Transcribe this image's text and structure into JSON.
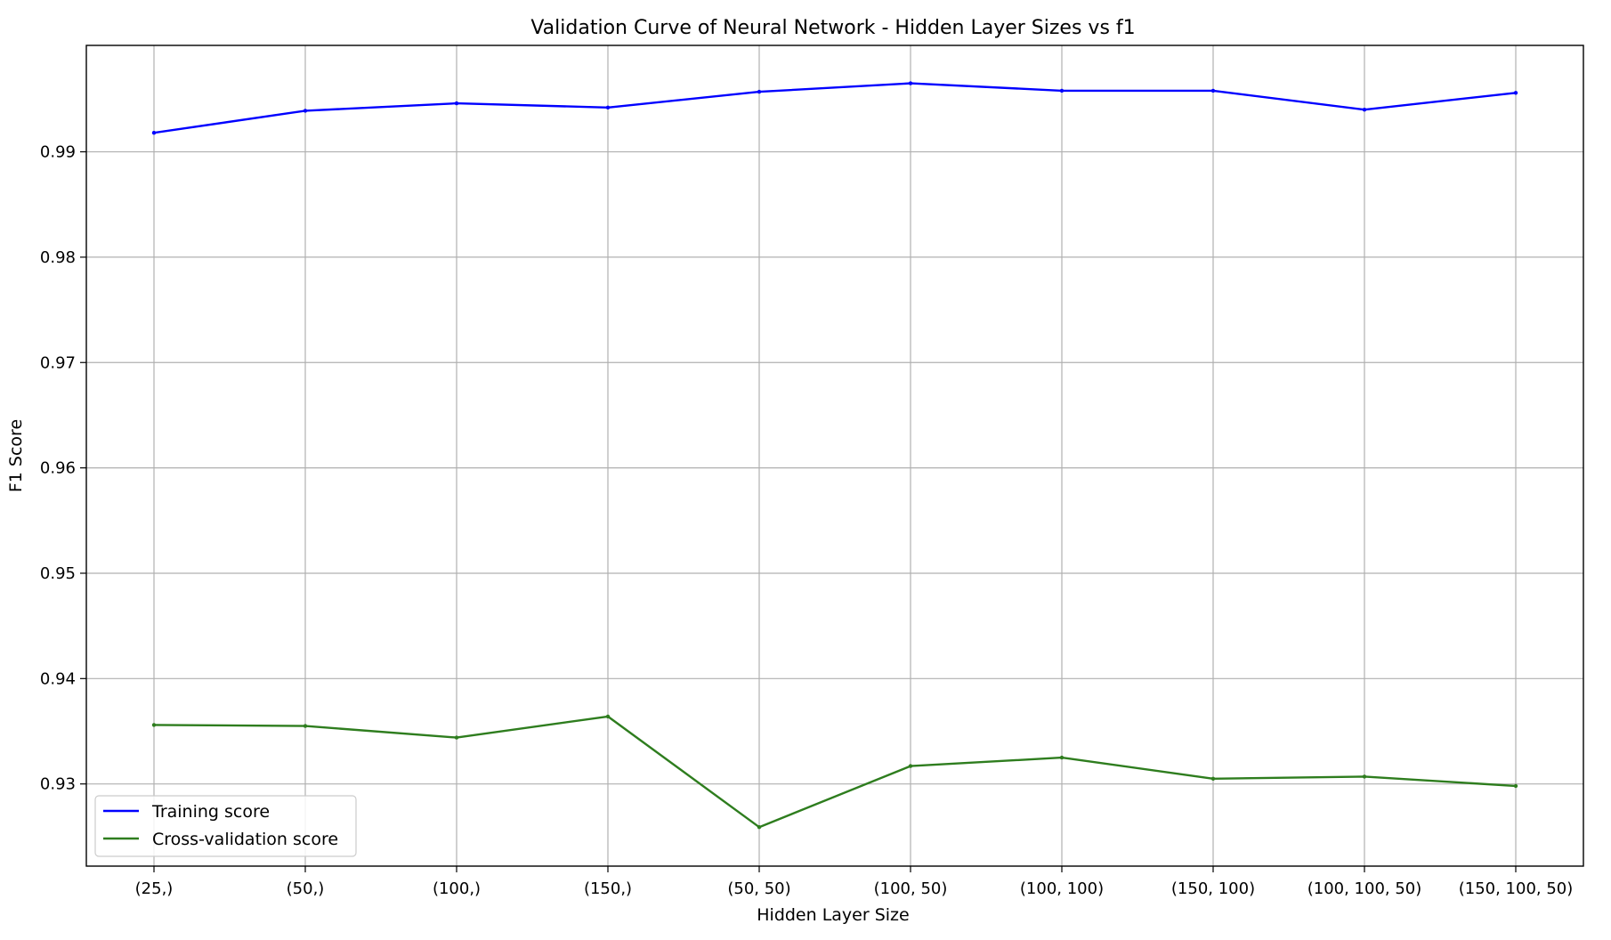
{
  "chart_data": {
    "type": "line",
    "title": "Validation Curve of Neural Network - Hidden Layer Sizes vs f1",
    "xlabel": "Hidden Layer Size",
    "ylabel": "F1 Score",
    "categories": [
      "(25,)",
      "(50,)",
      "(100,)",
      "(150,)",
      "(50, 50)",
      "(100, 50)",
      "(100, 100)",
      "(150, 100)",
      "(100, 100, 50)",
      "(150, 100, 50)"
    ],
    "series": [
      {
        "name": "Training score",
        "color": "#0000ff",
        "values": [
          0.9918,
          0.9939,
          0.9946,
          0.9942,
          0.9957,
          0.9965,
          0.9958,
          0.9958,
          0.994,
          0.9956
        ]
      },
      {
        "name": "Cross-validation score",
        "color": "#2e7d1e",
        "values": [
          0.9356,
          0.9355,
          0.9344,
          0.9364,
          0.9259,
          0.9317,
          0.9325,
          0.9305,
          0.9307,
          0.9298
        ]
      }
    ],
    "yticks": [
      0.93,
      0.94,
      0.95,
      0.96,
      0.97,
      0.98,
      0.99
    ],
    "ytick_labels": [
      "0.93",
      "0.94",
      "0.95",
      "0.96",
      "0.97",
      "0.98",
      "0.99"
    ],
    "ylim": [
      0.9222,
      1.0001
    ],
    "grid": true,
    "legend_position": "lower-left"
  }
}
